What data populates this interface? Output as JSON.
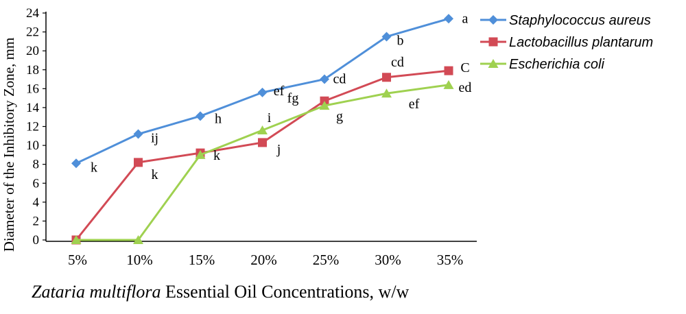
{
  "chart_data": {
    "type": "line",
    "categories": [
      "5%",
      "10%",
      "15%",
      "20%",
      "25%",
      "30%",
      "35%"
    ],
    "xlabel_italic": "Zataria multiflora",
    "xlabel_rest": " Essential Oil Concentrations, w/w",
    "ylabel": "Diameter of the Inhibitory Zone, mm",
    "ylim": [
      0,
      24
    ],
    "yticks": [
      0,
      2,
      4,
      6,
      8,
      10,
      12,
      14,
      16,
      18,
      20,
      22,
      24
    ],
    "legend_position": "top-right",
    "series": [
      {
        "name": "Staphylococcus aureus",
        "color": "#4f8fd9",
        "marker": "diamond",
        "values": [
          8.1,
          11.2,
          13.1,
          15.6,
          17.0,
          21.5,
          23.4
        ],
        "labels": [
          "k",
          "ij",
          "h",
          "ef",
          "cd",
          "b",
          "a"
        ]
      },
      {
        "name": "Lactobacillus plantarum",
        "color": "#d24a55",
        "marker": "square",
        "values": [
          0,
          8.2,
          9.2,
          10.3,
          14.7,
          17.2,
          17.9
        ],
        "labels": [
          "",
          "k",
          "k",
          "j",
          "fg",
          "cd",
          "C"
        ]
      },
      {
        "name": "Escherichia coli",
        "color": "#9fd150",
        "marker": "triangle",
        "values": [
          0,
          0,
          9.0,
          11.6,
          14.2,
          15.5,
          16.4
        ],
        "labels": [
          "",
          "",
          "",
          "i",
          "g",
          "ef",
          "ed"
        ]
      }
    ]
  }
}
